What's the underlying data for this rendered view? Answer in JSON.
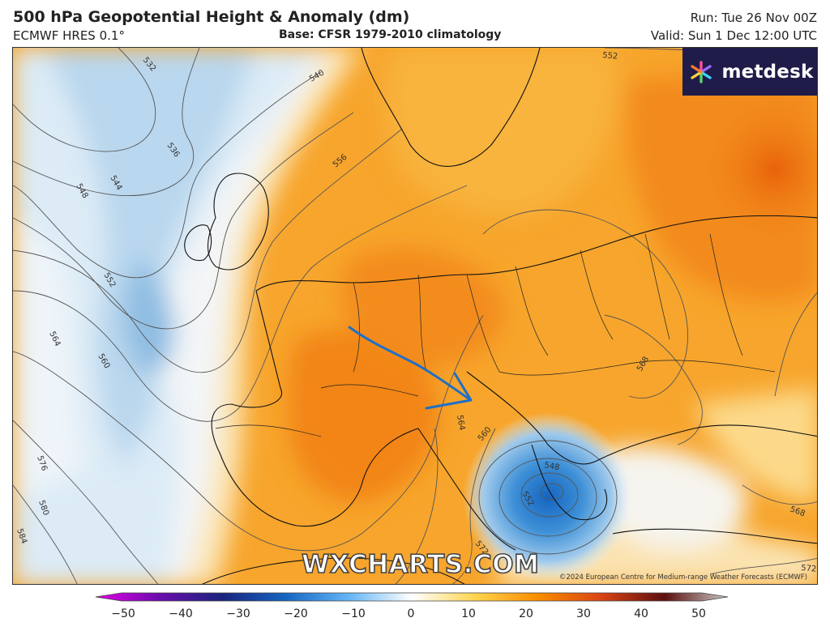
{
  "header": {
    "title": "500 hPa Geopotential Height & Anomaly (dm)",
    "model": "ECMWF HRES 0.1°",
    "base": "Base: CFSR 1979-2010 climatology",
    "run": "Run: Tue 26 Nov 00Z",
    "valid": "Valid: Sun 1 Dec 12:00 UTC"
  },
  "logo": {
    "text": "metdesk",
    "icon": "asterisk-logo-icon"
  },
  "watermark": "WXCHARTS.COM",
  "copyright": "©2024 European Centre for Medium-range Weather Forecasts (ECMWF)",
  "contour_labels": [
    "532",
    "536",
    "540",
    "544",
    "548",
    "552",
    "552",
    "556",
    "560",
    "564",
    "576",
    "580",
    "584",
    "564",
    "560",
    "548",
    "552",
    "568",
    "568",
    "572",
    "572"
  ],
  "colorbar": {
    "ticks": [
      "−50",
      "−40",
      "−30",
      "−20",
      "−10",
      "0",
      "10",
      "20",
      "30",
      "40",
      "50"
    ],
    "colors": [
      "#e600e6",
      "#6a0dad",
      "#1a237e",
      "#1565c0",
      "#64b5f6",
      "#ffffff",
      "#ffd54f",
      "#fb8c00",
      "#d84315",
      "#5d0f0f",
      "#c9c9c9"
    ]
  },
  "annotation": {
    "arrow_color": "#1f6fc6"
  }
}
